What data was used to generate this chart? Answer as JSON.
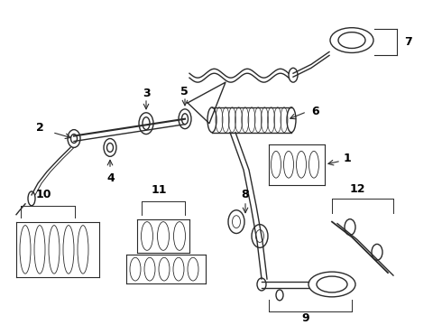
{
  "background_color": "#ffffff",
  "line_color": "#2a2a2a",
  "text_color": "#000000",
  "fig_width": 4.9,
  "fig_height": 3.6,
  "dpi": 100,
  "xlim": [
    0,
    490
  ],
  "ylim": [
    0,
    360
  ]
}
